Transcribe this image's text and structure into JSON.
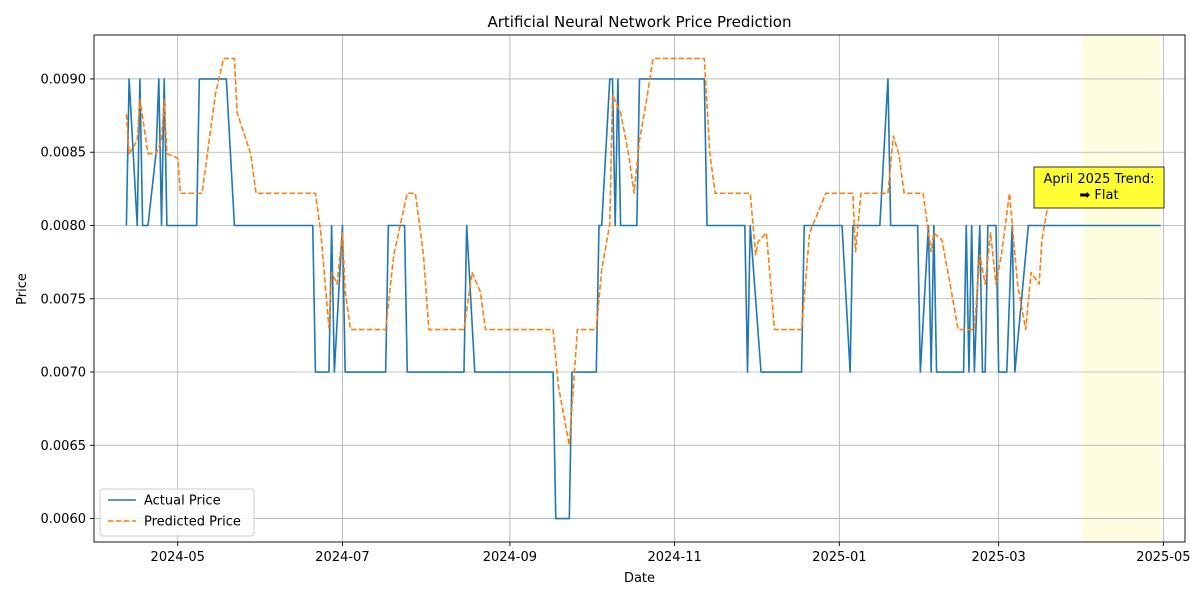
{
  "chart_data": {
    "type": "line",
    "title": "Artificial Neural Network Price Prediction",
    "xlabel": "Date",
    "ylabel": "Price",
    "xlim": [
      "2024-03-31",
      "2025-05-09"
    ],
    "ylim": [
      0.00584,
      0.0093
    ],
    "x_ticks": [
      {
        "date": "2024-05-01",
        "label": "2024-05"
      },
      {
        "date": "2024-07-01",
        "label": "2024-07"
      },
      {
        "date": "2024-09-01",
        "label": "2024-09"
      },
      {
        "date": "2024-11-01",
        "label": "2024-11"
      },
      {
        "date": "2025-01-01",
        "label": "2025-01"
      },
      {
        "date": "2025-03-01",
        "label": "2025-03"
      },
      {
        "date": "2025-05-01",
        "label": "2025-05"
      }
    ],
    "y_ticks": [
      {
        "value": 0.006,
        "label": "0.0060"
      },
      {
        "value": 0.0065,
        "label": "0.0065"
      },
      {
        "value": 0.007,
        "label": "0.0070"
      },
      {
        "value": 0.0075,
        "label": "0.0075"
      },
      {
        "value": 0.008,
        "label": "0.0080"
      },
      {
        "value": 0.0085,
        "label": "0.0085"
      },
      {
        "value": 0.009,
        "label": "0.0090"
      }
    ],
    "grid": true,
    "legend_position": "lower-left",
    "highlight_span": {
      "start": "2025-04-01",
      "end": "2025-04-30",
      "color": "#fffde0"
    },
    "annotation": {
      "lines": [
        "April 2025 Trend:",
        "➡ Flat"
      ],
      "color": "#ffff33"
    },
    "series": [
      {
        "name": "Actual Price",
        "color": "#1f77b4",
        "style": "solid",
        "points": [
          [
            "2024-04-12",
            0.008
          ],
          [
            "2024-04-13",
            0.009
          ],
          [
            "2024-04-16",
            0.008
          ],
          [
            "2024-04-17",
            0.009
          ],
          [
            "2024-04-18",
            0.008
          ],
          [
            "2024-04-20",
            0.008
          ],
          [
            "2024-04-23",
            0.0085
          ],
          [
            "2024-04-24",
            0.009
          ],
          [
            "2024-04-25",
            0.008
          ],
          [
            "2024-04-26",
            0.009
          ],
          [
            "2024-04-27",
            0.008
          ],
          [
            "2024-05-08",
            0.008
          ],
          [
            "2024-05-09",
            0.009
          ],
          [
            "2024-05-19",
            0.009
          ],
          [
            "2024-05-22",
            0.008
          ],
          [
            "2024-06-20",
            0.008
          ],
          [
            "2024-06-21",
            0.007
          ],
          [
            "2024-06-26",
            0.007
          ],
          [
            "2024-06-27",
            0.008
          ],
          [
            "2024-06-28",
            0.007
          ],
          [
            "2024-07-01",
            0.008
          ],
          [
            "2024-07-02",
            0.007
          ],
          [
            "2024-07-17",
            0.007
          ],
          [
            "2024-07-18",
            0.008
          ],
          [
            "2024-07-24",
            0.008
          ],
          [
            "2024-07-25",
            0.007
          ],
          [
            "2024-08-15",
            0.007
          ],
          [
            "2024-08-16",
            0.008
          ],
          [
            "2024-08-19",
            0.007
          ],
          [
            "2024-09-17",
            0.007
          ],
          [
            "2024-09-18",
            0.006
          ],
          [
            "2024-09-23",
            0.006
          ],
          [
            "2024-09-24",
            0.007
          ],
          [
            "2024-10-03",
            0.007
          ],
          [
            "2024-10-04",
            0.008
          ],
          [
            "2024-10-05",
            0.008
          ],
          [
            "2024-10-08",
            0.009
          ],
          [
            "2024-10-09",
            0.009
          ],
          [
            "2024-10-10",
            0.008
          ],
          [
            "2024-10-11",
            0.009
          ],
          [
            "2024-10-12",
            0.008
          ],
          [
            "2024-10-18",
            0.008
          ],
          [
            "2024-10-19",
            0.009
          ],
          [
            "2024-11-12",
            0.009
          ],
          [
            "2024-11-13",
            0.008
          ],
          [
            "2024-11-27",
            0.008
          ],
          [
            "2024-11-28",
            0.007
          ],
          [
            "2024-11-29",
            0.008
          ],
          [
            "2024-12-03",
            0.007
          ],
          [
            "2024-12-18",
            0.007
          ],
          [
            "2024-12-19",
            0.008
          ],
          [
            "2025-01-02",
            0.008
          ],
          [
            "2025-01-05",
            0.007
          ],
          [
            "2025-01-06",
            0.008
          ],
          [
            "2025-01-16",
            0.008
          ],
          [
            "2025-01-19",
            0.009
          ],
          [
            "2025-01-20",
            0.008
          ],
          [
            "2025-01-30",
            0.008
          ],
          [
            "2025-01-31",
            0.007
          ],
          [
            "2025-02-03",
            0.008
          ],
          [
            "2025-02-04",
            0.007
          ],
          [
            "2025-02-05",
            0.008
          ],
          [
            "2025-02-06",
            0.007
          ],
          [
            "2025-02-16",
            0.007
          ],
          [
            "2025-02-17",
            0.008
          ],
          [
            "2025-02-18",
            0.007
          ],
          [
            "2025-02-19",
            0.008
          ],
          [
            "2025-02-20",
            0.007
          ],
          [
            "2025-02-22",
            0.008
          ],
          [
            "2025-02-23",
            0.007
          ],
          [
            "2025-02-24",
            0.007
          ],
          [
            "2025-02-25",
            0.008
          ],
          [
            "2025-02-28",
            0.008
          ],
          [
            "2025-03-01",
            0.007
          ],
          [
            "2025-03-04",
            0.007
          ],
          [
            "2025-03-06",
            0.008
          ],
          [
            "2025-03-07",
            0.007
          ],
          [
            "2025-03-12",
            0.008
          ],
          [
            "2025-04-30",
            0.008
          ]
        ]
      },
      {
        "name": "Predicted Price",
        "color": "#ff7f0e",
        "style": "dashed",
        "points": [
          [
            "2024-04-12",
            0.00876
          ],
          [
            "2024-04-13",
            0.00849
          ],
          [
            "2024-04-16",
            0.00858
          ],
          [
            "2024-04-17",
            0.00886
          ],
          [
            "2024-04-20",
            0.00849
          ],
          [
            "2024-04-23",
            0.00849
          ],
          [
            "2024-04-25",
            0.00858
          ],
          [
            "2024-04-26",
            0.00886
          ],
          [
            "2024-04-27",
            0.00849
          ],
          [
            "2024-05-01",
            0.00846
          ],
          [
            "2024-05-02",
            0.00822
          ],
          [
            "2024-05-10",
            0.00822
          ],
          [
            "2024-05-15",
            0.0089
          ],
          [
            "2024-05-18",
            0.00914
          ],
          [
            "2024-05-22",
            0.00914
          ],
          [
            "2024-05-23",
            0.00877
          ],
          [
            "2024-05-28",
            0.00849
          ],
          [
            "2024-05-30",
            0.00822
          ],
          [
            "2024-06-21",
            0.00822
          ],
          [
            "2024-06-23",
            0.00795
          ],
          [
            "2024-06-26",
            0.0073
          ],
          [
            "2024-06-27",
            0.00768
          ],
          [
            "2024-06-29",
            0.0076
          ],
          [
            "2024-07-01",
            0.00795
          ],
          [
            "2024-07-02",
            0.00755
          ],
          [
            "2024-07-04",
            0.00729
          ],
          [
            "2024-07-17",
            0.00729
          ],
          [
            "2024-07-20",
            0.0078
          ],
          [
            "2024-07-25",
            0.00822
          ],
          [
            "2024-07-28",
            0.00822
          ],
          [
            "2024-07-31",
            0.0078
          ],
          [
            "2024-08-02",
            0.00729
          ],
          [
            "2024-08-15",
            0.00729
          ],
          [
            "2024-08-18",
            0.00768
          ],
          [
            "2024-08-21",
            0.00755
          ],
          [
            "2024-08-23",
            0.00729
          ],
          [
            "2024-09-17",
            0.00729
          ],
          [
            "2024-09-19",
            0.0069
          ],
          [
            "2024-09-23",
            0.0065
          ],
          [
            "2024-09-26",
            0.00729
          ],
          [
            "2024-10-03",
            0.00729
          ],
          [
            "2024-10-05",
            0.0077
          ],
          [
            "2024-10-08",
            0.00801
          ],
          [
            "2024-10-09",
            0.00889
          ],
          [
            "2024-10-12",
            0.00877
          ],
          [
            "2024-10-15",
            0.00848
          ],
          [
            "2024-10-17",
            0.00822
          ],
          [
            "2024-10-19",
            0.00858
          ],
          [
            "2024-10-22",
            0.0089
          ],
          [
            "2024-10-24",
            0.00914
          ],
          [
            "2024-11-12",
            0.00914
          ],
          [
            "2024-11-14",
            0.0085
          ],
          [
            "2024-11-16",
            0.00822
          ],
          [
            "2024-11-29",
            0.00822
          ],
          [
            "2024-12-01",
            0.0078
          ],
          [
            "2024-12-02",
            0.00789
          ],
          [
            "2024-12-05",
            0.00795
          ],
          [
            "2024-12-08",
            0.00729
          ],
          [
            "2024-12-18",
            0.00729
          ],
          [
            "2024-12-21",
            0.00795
          ],
          [
            "2024-12-27",
            0.00822
          ],
          [
            "2025-01-06",
            0.00822
          ],
          [
            "2025-01-07",
            0.00782
          ],
          [
            "2025-01-09",
            0.00822
          ],
          [
            "2025-01-19",
            0.00822
          ],
          [
            "2025-01-21",
            0.00861
          ],
          [
            "2025-01-23",
            0.00849
          ],
          [
            "2025-01-25",
            0.00822
          ],
          [
            "2025-02-01",
            0.00822
          ],
          [
            "2025-02-04",
            0.00782
          ],
          [
            "2025-02-05",
            0.00795
          ],
          [
            "2025-02-08",
            0.0079
          ],
          [
            "2025-02-11",
            0.0076
          ],
          [
            "2025-02-14",
            0.00729
          ],
          [
            "2025-02-20",
            0.00729
          ],
          [
            "2025-02-22",
            0.0078
          ],
          [
            "2025-02-24",
            0.0076
          ],
          [
            "2025-02-26",
            0.00795
          ],
          [
            "2025-02-28",
            0.0076
          ],
          [
            "2025-03-02",
            0.0078
          ],
          [
            "2025-03-05",
            0.00822
          ],
          [
            "2025-03-08",
            0.0076
          ],
          [
            "2025-03-11",
            0.00729
          ],
          [
            "2025-03-13",
            0.00768
          ],
          [
            "2025-03-16",
            0.0076
          ],
          [
            "2025-03-17",
            0.0079
          ],
          [
            "2025-03-20",
            0.00822
          ],
          [
            "2025-04-30",
            0.00822
          ]
        ]
      }
    ]
  }
}
